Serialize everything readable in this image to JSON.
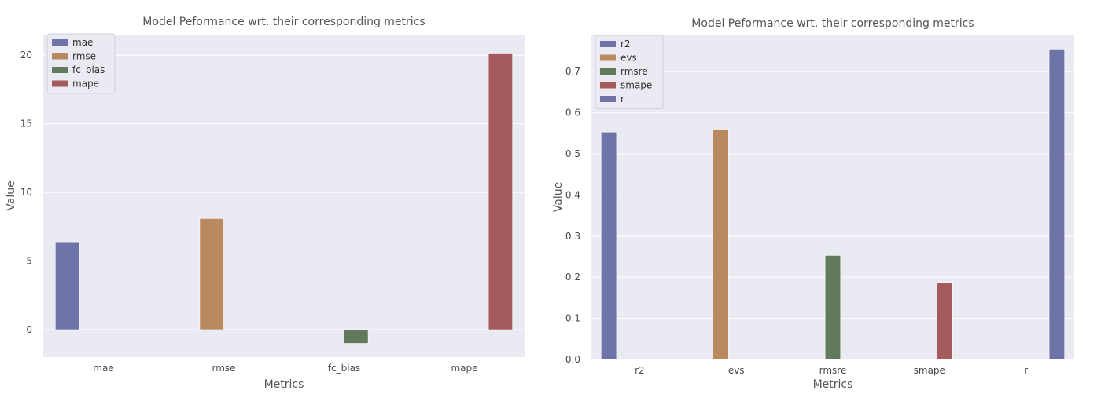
{
  "chart_data": [
    {
      "type": "bar",
      "title": "Model Peformance wrt. their corresponding metrics",
      "xlabel": "Metrics",
      "ylabel": "Value",
      "categories": [
        "mae",
        "rmse",
        "fc_bias",
        "mape"
      ],
      "ylim": [
        -2.0,
        21.5
      ],
      "yticks": [
        0,
        5,
        10,
        15,
        20
      ],
      "ytick_labels": [
        "0",
        "5",
        "10",
        "15",
        "20"
      ],
      "grid": true,
      "legend_position": "top-left",
      "series": [
        {
          "name": "mae",
          "color": "#6e74a8",
          "values": [
            6.4,
            null,
            null,
            null
          ]
        },
        {
          "name": "rmse",
          "color": "#b98a60",
          "values": [
            null,
            8.1,
            null,
            null
          ]
        },
        {
          "name": "fc_bias",
          "color": "#627a5c",
          "values": [
            null,
            null,
            -1.0,
            null
          ]
        },
        {
          "name": "mape",
          "color": "#a55a5c",
          "values": [
            null,
            null,
            null,
            20.1
          ]
        }
      ]
    },
    {
      "type": "bar",
      "title": "Model Peformance wrt. their corresponding metrics",
      "xlabel": "Metrics",
      "ylabel": "Value",
      "categories": [
        "r2",
        "evs",
        "rmsre",
        "smape",
        "r"
      ],
      "ylim": [
        0.0,
        0.79
      ],
      "yticks": [
        0.0,
        0.1,
        0.2,
        0.3,
        0.4,
        0.5,
        0.6,
        0.7
      ],
      "ytick_labels": [
        "0.0",
        "0.1",
        "0.2",
        "0.3",
        "0.4",
        "0.5",
        "0.6",
        "0.7"
      ],
      "grid": true,
      "legend_position": "top-left",
      "series": [
        {
          "name": "r2",
          "color": "#6e74a8",
          "values": [
            0.553,
            null,
            null,
            null,
            null
          ]
        },
        {
          "name": "evs",
          "color": "#b98a60",
          "values": [
            null,
            0.56,
            null,
            null,
            null
          ]
        },
        {
          "name": "rmsre",
          "color": "#627a5c",
          "values": [
            null,
            null,
            0.253,
            null,
            null
          ]
        },
        {
          "name": "smape",
          "color": "#a55a5c",
          "values": [
            null,
            null,
            null,
            0.187,
            null
          ]
        },
        {
          "name": "r",
          "color": "#6e74a8",
          "values": [
            null,
            null,
            null,
            null,
            0.753
          ]
        }
      ]
    }
  ]
}
